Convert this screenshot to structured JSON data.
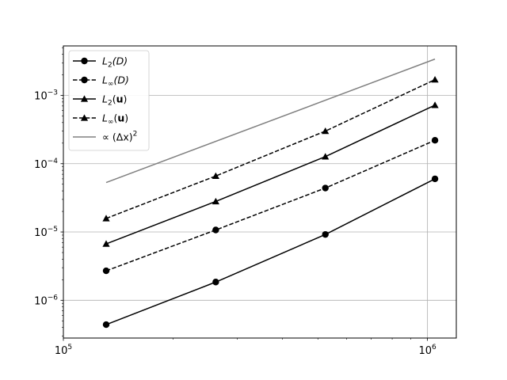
{
  "chart_data": {
    "type": "line",
    "xscale": "log",
    "yscale": "log",
    "xlim": [
      100000,
      1200000
    ],
    "ylim": [
      2.8e-07,
      0.0053
    ],
    "grid": true,
    "legend_position": "top-left",
    "x_ticks": [
      {
        "value": 100000,
        "base": "10",
        "exp": "5"
      },
      {
        "value": 1000000,
        "base": "10",
        "exp": "6"
      }
    ],
    "y_ticks": [
      {
        "value": 1e-06,
        "base": "10",
        "exp": "−6"
      },
      {
        "value": 1e-05,
        "base": "10",
        "exp": "−5"
      },
      {
        "value": 0.0001,
        "base": "10",
        "exp": "−4"
      },
      {
        "value": 0.001,
        "base": "10",
        "exp": "−3"
      }
    ],
    "series": [
      {
        "name": "L2(D)",
        "legend_main": "L",
        "legend_sub": "2",
        "legend_arg": "(D)",
        "arg_bold": false,
        "color": "#000000",
        "dash": "solid",
        "marker": "circle",
        "x": [
          131072,
          262144,
          524288,
          1048576
        ],
        "y": [
          4.4e-07,
          1.85e-06,
          9.2e-06,
          6e-05
        ]
      },
      {
        "name": "L∞(D)",
        "legend_main": "L",
        "legend_sub": "∞",
        "legend_arg": "(D)",
        "arg_bold": false,
        "color": "#000000",
        "dash": "dashed",
        "marker": "circle",
        "x": [
          131072,
          262144,
          524288,
          1048576
        ],
        "y": [
          2.7e-06,
          1.07e-05,
          4.4e-05,
          0.00022
        ]
      },
      {
        "name": "L2(u)",
        "legend_main": "L",
        "legend_sub": "2",
        "legend_arg": "u",
        "arg_bold": true,
        "color": "#000000",
        "dash": "solid",
        "marker": "triangle",
        "x": [
          131072,
          262144,
          524288,
          1048576
        ],
        "y": [
          6.7e-06,
          2.8e-05,
          0.000127,
          0.00072
        ]
      },
      {
        "name": "L∞(u)",
        "legend_main": "L",
        "legend_sub": "∞",
        "legend_arg": "u",
        "arg_bold": true,
        "color": "#000000",
        "dash": "dashed",
        "marker": "triangle",
        "x": [
          131072,
          262144,
          524288,
          1048576
        ],
        "y": [
          1.58e-05,
          6.6e-05,
          0.0003,
          0.0017
        ]
      },
      {
        "name": "∝ (Δx)^2",
        "legend_text": "∝ (Δx)",
        "legend_sup": "2",
        "color": "#808080",
        "dash": "solid",
        "marker": "none",
        "x": [
          131072,
          1048576
        ],
        "y": [
          5.3e-05,
          0.0034
        ]
      }
    ]
  }
}
